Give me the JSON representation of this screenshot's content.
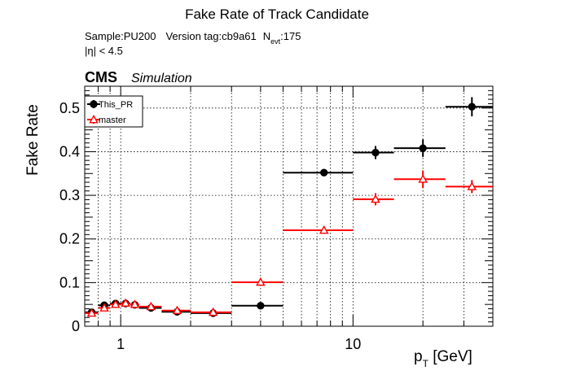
{
  "chart_data": {
    "type": "scatter",
    "title": "Fake Rate of Track Candidate",
    "info": {
      "sample": "Sample:PU200",
      "version": "Version tag:cb9a61",
      "nevt_main": "N",
      "nevt_sub": "evt",
      "nevt_value": ":175",
      "eta_cut": "|η| < 4.5"
    },
    "cms_label": "CMS",
    "cms_sublabel": "Simulation",
    "xlabel_main": "p",
    "xlabel_sub": "T",
    "xlabel_unit": " [GeV]",
    "ylabel": "Fake Rate",
    "x_scale": "log",
    "xlim": [
      0.7,
      40
    ],
    "ylim": [
      0,
      0.55
    ],
    "x_ticks": [
      {
        "value": 1,
        "label": "1"
      },
      {
        "value": 10,
        "label": "10"
      }
    ],
    "y_ticks": [
      {
        "value": 0,
        "label": "0"
      },
      {
        "value": 0.1,
        "label": "0.1"
      },
      {
        "value": 0.2,
        "label": "0.2"
      },
      {
        "value": 0.3,
        "label": "0.3"
      },
      {
        "value": 0.4,
        "label": "0.4"
      },
      {
        "value": 0.5,
        "label": "0.5"
      }
    ],
    "grid": true,
    "legend_position": "top-left",
    "series": [
      {
        "name": "This_PR",
        "color": "#000000",
        "marker": "circle-filled",
        "points": [
          {
            "x": 0.75,
            "xlo": 0.7,
            "xhi": 0.8,
            "y": 0.032,
            "err": 0.003
          },
          {
            "x": 0.85,
            "xlo": 0.8,
            "xhi": 0.9,
            "y": 0.048,
            "err": 0.003
          },
          {
            "x": 0.95,
            "xlo": 0.9,
            "xhi": 1.0,
            "y": 0.052,
            "err": 0.003
          },
          {
            "x": 1.05,
            "xlo": 1.0,
            "xhi": 1.1,
            "y": 0.052,
            "err": 0.003
          },
          {
            "x": 1.15,
            "xlo": 1.1,
            "xhi": 1.2,
            "y": 0.049,
            "err": 0.003
          },
          {
            "x": 1.35,
            "xlo": 1.2,
            "xhi": 1.5,
            "y": 0.042,
            "err": 0.003
          },
          {
            "x": 1.75,
            "xlo": 1.5,
            "xhi": 2.0,
            "y": 0.033,
            "err": 0.003
          },
          {
            "x": 2.5,
            "xlo": 2.0,
            "xhi": 3.0,
            "y": 0.03,
            "err": 0.003
          },
          {
            "x": 4.0,
            "xlo": 3.0,
            "xhi": 5.0,
            "y": 0.047,
            "err": 0.004
          },
          {
            "x": 7.5,
            "xlo": 5.0,
            "xhi": 10.0,
            "y": 0.352,
            "err": 0.006
          },
          {
            "x": 12.5,
            "xlo": 10.0,
            "xhi": 15.0,
            "y": 0.398,
            "err": 0.015
          },
          {
            "x": 20.0,
            "xlo": 15.0,
            "xhi": 25.0,
            "y": 0.408,
            "err": 0.02
          },
          {
            "x": 32.5,
            "xlo": 25.0,
            "xhi": 40.0,
            "y": 0.503,
            "err": 0.022
          }
        ]
      },
      {
        "name": "master",
        "color": "#ff0000",
        "marker": "triangle-open",
        "points": [
          {
            "x": 0.75,
            "xlo": 0.7,
            "xhi": 0.8,
            "y": 0.03,
            "err": 0.003
          },
          {
            "x": 0.85,
            "xlo": 0.8,
            "xhi": 0.9,
            "y": 0.042,
            "err": 0.003
          },
          {
            "x": 0.95,
            "xlo": 0.9,
            "xhi": 1.0,
            "y": 0.05,
            "err": 0.003
          },
          {
            "x": 1.05,
            "xlo": 1.0,
            "xhi": 1.1,
            "y": 0.053,
            "err": 0.003
          },
          {
            "x": 1.15,
            "xlo": 1.1,
            "xhi": 1.2,
            "y": 0.05,
            "err": 0.003
          },
          {
            "x": 1.35,
            "xlo": 1.2,
            "xhi": 1.5,
            "y": 0.045,
            "err": 0.003
          },
          {
            "x": 1.75,
            "xlo": 1.5,
            "xhi": 2.0,
            "y": 0.036,
            "err": 0.003
          },
          {
            "x": 2.5,
            "xlo": 2.0,
            "xhi": 3.0,
            "y": 0.032,
            "err": 0.003
          },
          {
            "x": 4.0,
            "xlo": 3.0,
            "xhi": 5.0,
            "y": 0.101,
            "err": 0.005
          },
          {
            "x": 7.5,
            "xlo": 5.0,
            "xhi": 10.0,
            "y": 0.22,
            "err": 0.006
          },
          {
            "x": 12.5,
            "xlo": 10.0,
            "xhi": 15.0,
            "y": 0.291,
            "err": 0.014
          },
          {
            "x": 20.0,
            "xlo": 15.0,
            "xhi": 25.0,
            "y": 0.337,
            "err": 0.02
          },
          {
            "x": 32.5,
            "xlo": 25.0,
            "xhi": 40.0,
            "y": 0.32,
            "err": 0.015
          }
        ]
      }
    ]
  }
}
